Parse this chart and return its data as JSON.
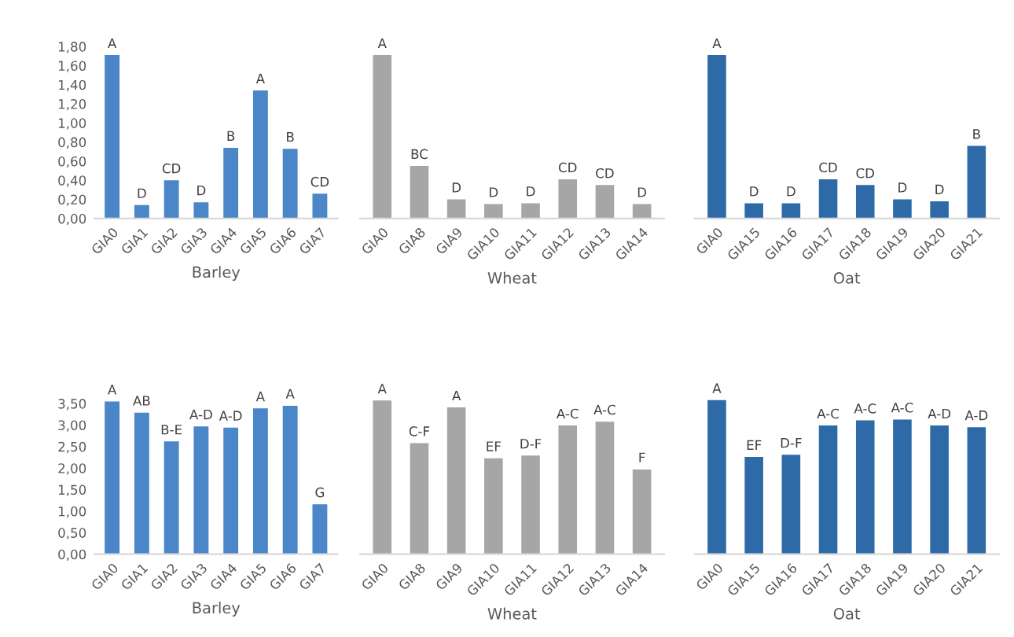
{
  "chart_data": [
    {
      "type": "bar",
      "xlabel": "Barley",
      "categories": [
        "GIA0",
        "GIA1",
        "GIA2",
        "GIA3",
        "GIA4",
        "GIA5",
        "GIA6",
        "GIA7"
      ],
      "values": [
        1.71,
        0.14,
        0.4,
        0.17,
        0.74,
        1.34,
        0.73,
        0.26
      ],
      "value_labels": [
        "A",
        "D",
        "CD",
        "D",
        "B",
        "A",
        "B",
        "CD"
      ],
      "color": "#4a86c8",
      "ylim": [
        0,
        1.8
      ],
      "yticks": [
        {
          "value": 0,
          "label": "0,00"
        },
        {
          "value": 0.2,
          "label": "0,20"
        },
        {
          "value": 0.4,
          "label": "0,40"
        },
        {
          "value": 0.6,
          "label": "0,60"
        },
        {
          "value": 0.8,
          "label": "0,80"
        },
        {
          "value": 1.0,
          "label": "1,00"
        },
        {
          "value": 1.2,
          "label": "1,20"
        },
        {
          "value": 1.4,
          "label": "1,40"
        },
        {
          "value": 1.6,
          "label": "1,60"
        },
        {
          "value": 1.8,
          "label": "1,80"
        }
      ]
    },
    {
      "type": "bar",
      "xlabel": "Wheat",
      "categories": [
        "GIA0",
        "GIA8",
        "GIA9",
        "GIA10",
        "GIA11",
        "GIA12",
        "GIA13",
        "GIA14"
      ],
      "values": [
        1.71,
        0.55,
        0.2,
        0.15,
        0.16,
        0.41,
        0.35,
        0.15
      ],
      "value_labels": [
        "A",
        "BC",
        "D",
        "D",
        "D",
        "CD",
        "CD",
        "D"
      ],
      "color": "#a6a6a6",
      "ylim": [
        0,
        1.8
      ],
      "tick_labels": "x"
    },
    {
      "type": "bar",
      "xlabel": "Oat",
      "categories": [
        "GIA0",
        "GIA15",
        "GIA16",
        "GIA17",
        "GIA18",
        "GIA19",
        "GIA20",
        "GIA21"
      ],
      "values": [
        1.71,
        0.16,
        0.16,
        0.41,
        0.35,
        0.2,
        0.18,
        0.76
      ],
      "value_labels": [
        "A",
        "D",
        "D",
        "CD",
        "CD",
        "D",
        "D",
        "B"
      ],
      "color": "#2f6aa8",
      "ylim": [
        0,
        1.8
      ],
      "tick_labels": "x"
    },
    {
      "type": "bar",
      "xlabel": "Barley",
      "categories": [
        "GIA0",
        "GIA1",
        "GIA2",
        "GIA3",
        "GIA4",
        "GIA5",
        "GIA6",
        "GIA7"
      ],
      "values": [
        3.55,
        3.29,
        2.62,
        2.97,
        2.94,
        3.39,
        3.45,
        1.16
      ],
      "value_labels": [
        "A",
        "AB",
        "B-E",
        "A-D",
        "A-D",
        "A",
        "A",
        "G"
      ],
      "color": "#4a86c8",
      "ylim": [
        0,
        3.7
      ],
      "yticks": [
        {
          "value": 0,
          "label": "0,00"
        },
        {
          "value": 0.5,
          "label": "0,50"
        },
        {
          "value": 1.0,
          "label": "1,00"
        },
        {
          "value": 1.5,
          "label": "1,50"
        },
        {
          "value": 2.0,
          "label": "2,00"
        },
        {
          "value": 2.5,
          "label": "2,50"
        },
        {
          "value": 3.0,
          "label": "3,00"
        },
        {
          "value": 3.5,
          "label": "3,50"
        }
      ]
    },
    {
      "type": "bar",
      "xlabel": "Wheat",
      "categories": [
        "GIA0",
        "GIA8",
        "GIA9",
        "GIA10",
        "GIA11",
        "GIA12",
        "GIA13",
        "GIA14"
      ],
      "values": [
        3.57,
        2.58,
        3.41,
        2.23,
        2.29,
        2.99,
        3.08,
        1.97
      ],
      "value_labels": [
        "A",
        "C-F",
        "A",
        "EF",
        "D-F",
        "A-C",
        "A-C",
        "F"
      ],
      "color": "#a6a6a6",
      "ylim": [
        0,
        3.7
      ],
      "tick_labels": "x"
    },
    {
      "type": "bar",
      "xlabel": "Oat",
      "categories": [
        "GIA0",
        "GIA15",
        "GIA16",
        "GIA17",
        "GIA18",
        "GIA19",
        "GIA20",
        "GIA21"
      ],
      "values": [
        3.58,
        2.26,
        2.31,
        2.99,
        3.11,
        3.13,
        2.99,
        2.95
      ],
      "value_labels": [
        "A",
        "EF",
        "D-F",
        "A-C",
        "A-C",
        "A-C",
        "A-D",
        "A-D"
      ],
      "color": "#2f6aa8",
      "ylim": [
        0,
        3.7
      ],
      "tick_labels": "x"
    }
  ]
}
